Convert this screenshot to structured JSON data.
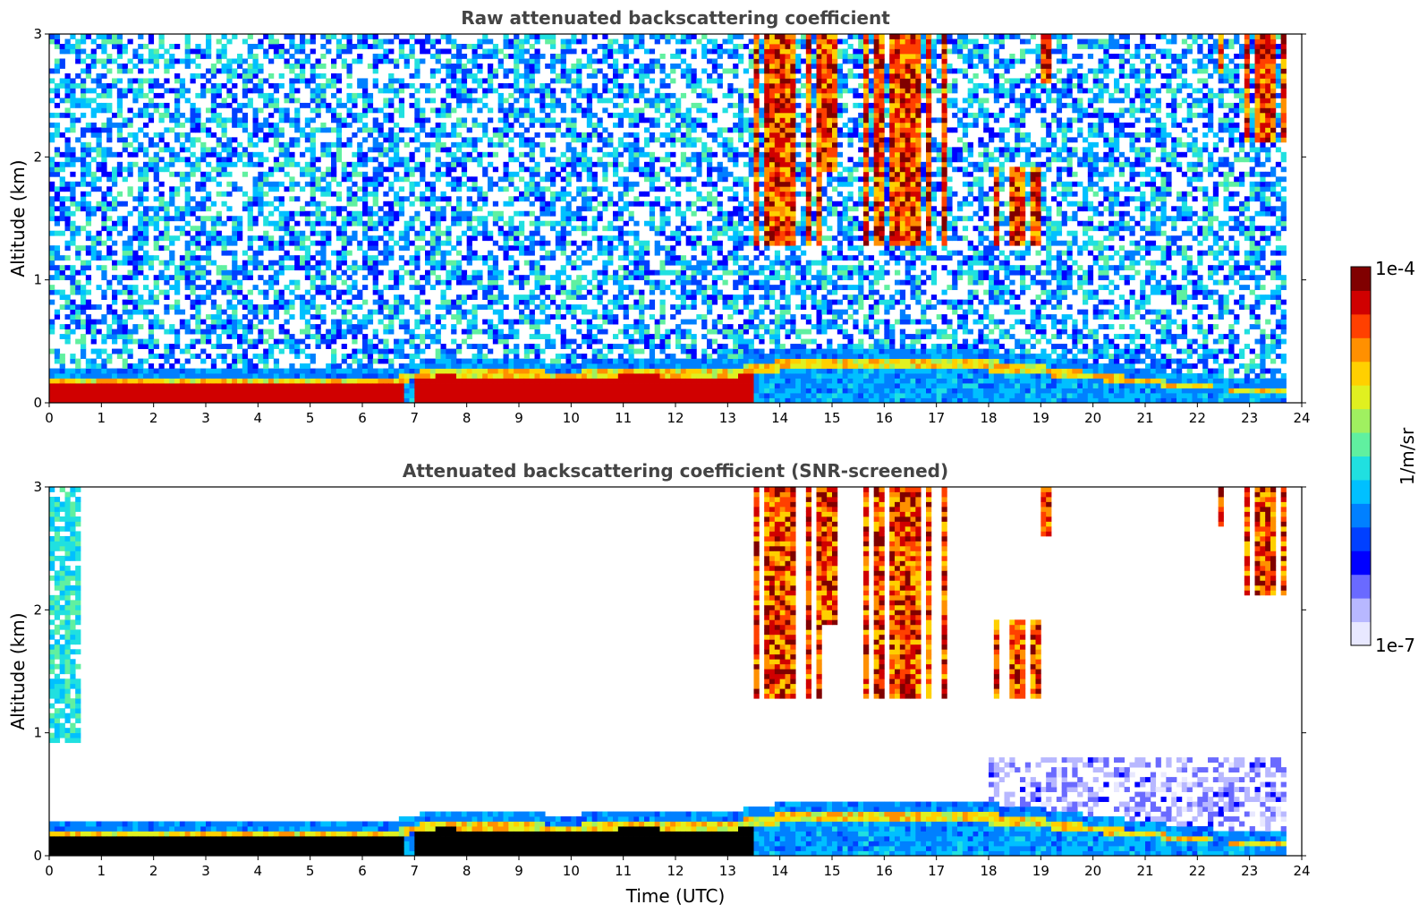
{
  "chart_data": [
    {
      "type": "heatmap",
      "title": "Raw attenuated backscattering coefficient",
      "xlabel": "",
      "ylabel": "Altitude (km)",
      "xlim": [
        0,
        24
      ],
      "ylim": [
        0,
        3
      ],
      "x_ticks": [
        "0",
        "1",
        "2",
        "3",
        "4",
        "5",
        "6",
        "7",
        "8",
        "9",
        "10",
        "11",
        "12",
        "13",
        "14",
        "15",
        "16",
        "17",
        "18",
        "19",
        "20",
        "21",
        "22",
        "23",
        "24"
      ],
      "y_ticks": [
        "0",
        "1",
        "2",
        "3"
      ],
      "features": {
        "boundary_layer_top_km": [
          [
            0,
            0.2
          ],
          [
            6.5,
            0.2
          ],
          [
            7.5,
            0.3
          ],
          [
            10,
            0.25
          ],
          [
            11,
            0.3
          ],
          [
            13,
            0.28
          ],
          [
            14,
            0.35
          ],
          [
            17,
            0.38
          ],
          [
            18.5,
            0.33
          ],
          [
            20,
            0.25
          ],
          [
            22,
            0.15
          ],
          [
            23.7,
            0.1
          ]
        ],
        "clouds": [
          {
            "t_start": 13.4,
            "t_end": 14.8,
            "z_base": 1.3,
            "z_top": 3.0
          },
          {
            "t_start": 14.6,
            "t_end": 15.2,
            "z_base": 1.9,
            "z_top": 3.0
          },
          {
            "t_start": 15.5,
            "t_end": 17.3,
            "z_base": 1.3,
            "z_top": 3.0
          },
          {
            "t_start": 18.0,
            "t_end": 19.1,
            "z_base": 1.3,
            "z_top": 1.9
          },
          {
            "t_start": 19.0,
            "t_end": 19.3,
            "z_base": 2.6,
            "z_top": 3.0
          },
          {
            "t_start": 22.3,
            "t_end": 22.6,
            "z_base": 2.7,
            "z_top": 3.0
          },
          {
            "t_start": 22.9,
            "t_end": 23.7,
            "z_base": 2.1,
            "z_top": 3.0
          }
        ],
        "data_end_time": 23.7
      }
    },
    {
      "type": "heatmap",
      "title": "Attenuated backscattering coefficient (SNR-screened)",
      "xlabel": "Time (UTC)",
      "ylabel": "Altitude (km)",
      "xlim": [
        0,
        24
      ],
      "ylim": [
        0,
        3
      ],
      "x_ticks": [
        "0",
        "1",
        "2",
        "3",
        "4",
        "5",
        "6",
        "7",
        "8",
        "9",
        "10",
        "11",
        "12",
        "13",
        "14",
        "15",
        "16",
        "17",
        "18",
        "19",
        "20",
        "21",
        "22",
        "23",
        "24"
      ],
      "y_ticks": [
        "0",
        "1",
        "2",
        "3"
      ],
      "screened": true
    }
  ],
  "colorbar": {
    "min_label": "1e-7",
    "max_label": "1e-4",
    "unit_label": "1/m/sr",
    "colors": [
      "#e8e8ff",
      "#b8b8ff",
      "#6a6aff",
      "#0000ff",
      "#0040ff",
      "#0080ff",
      "#00c0ff",
      "#20e0e0",
      "#60f0a0",
      "#a0f060",
      "#e0f020",
      "#ffd000",
      "#ff9000",
      "#ff4000",
      "#d00000",
      "#800000"
    ]
  }
}
